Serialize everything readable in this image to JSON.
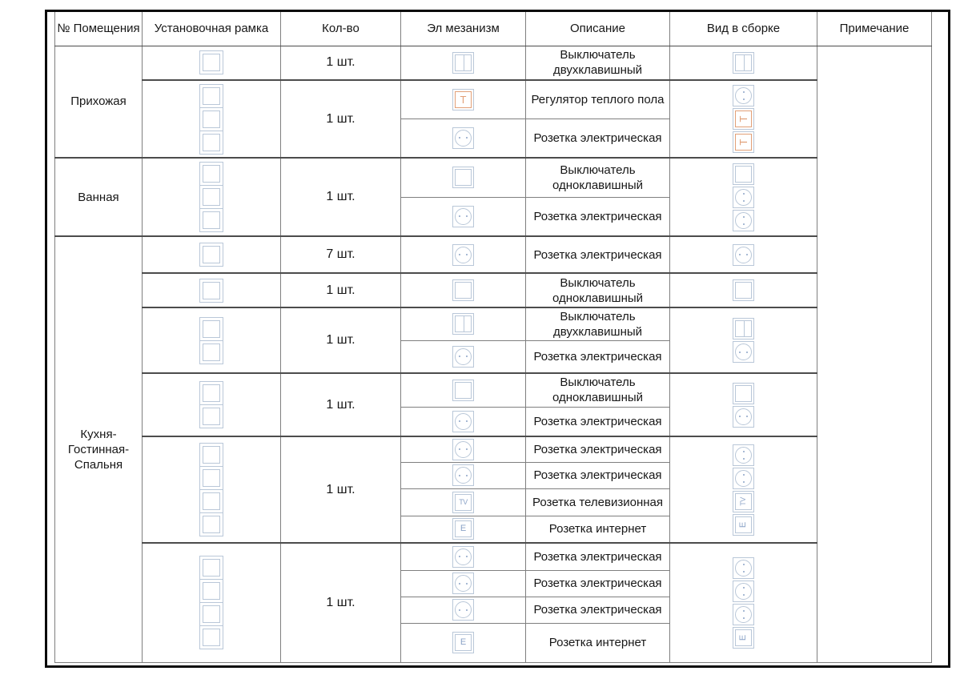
{
  "colors": {
    "frame": "#b9c7d8",
    "accent": "#e2a078",
    "label": "#8ba3c7",
    "grid": "#7f7f7f",
    "grid_dark": "#4c4c4c",
    "page_border": "#0a0a0a"
  },
  "columns": [
    "№ Помещения",
    "Установочная рамка",
    "Кол-во",
    "Эл мезанизм",
    "Описание",
    "Вид в сборке",
    "Примечание"
  ],
  "notes": "",
  "icon_text": {
    "t": "T",
    "tv": "TV",
    "e": "E"
  },
  "rooms": [
    {
      "name": "Прихожая",
      "groups": [
        {
          "frame_count": 1,
          "qty": "1 шт.",
          "mechs": [
            {
              "icon": "switch2",
              "desc": "Выключатель\nдвухклавишный"
            }
          ],
          "assembled": [
            "switch2"
          ]
        },
        {
          "frame_count": 3,
          "qty": "1 шт.",
          "mechs": [
            {
              "icon": "t",
              "desc": "Регулятор теплого пола"
            },
            {
              "icon": "socket",
              "desc": "Розетка электрическая"
            }
          ],
          "assembled": [
            "socket",
            "t",
            "t"
          ]
        }
      ]
    },
    {
      "name": "Ванная",
      "groups": [
        {
          "frame_count": 3,
          "qty": "1 шт.",
          "mechs": [
            {
              "icon": "switch1",
              "desc": "Выключатель\nодноклавишный"
            },
            {
              "icon": "socket",
              "desc": "Розетка электрическая"
            }
          ],
          "assembled": [
            "switch1",
            "socket",
            "socket"
          ]
        }
      ]
    },
    {
      "name": "Кухня-\nГостинная-\nСпальня",
      "groups": [
        {
          "frame_count": 1,
          "qty": "7 шт.",
          "mechs": [
            {
              "icon": "socket",
              "desc": "Розетка электрическая"
            }
          ],
          "assembled": [
            "socket"
          ]
        },
        {
          "frame_count": 1,
          "qty": "1 шт.",
          "mechs": [
            {
              "icon": "switch1",
              "desc": "Выключатель\nодноклавишный"
            }
          ],
          "assembled": [
            "switch1"
          ]
        },
        {
          "frame_count": 2,
          "qty": "1 шт.",
          "mechs": [
            {
              "icon": "switch2",
              "desc": "Выключатель\nдвухклавишный"
            },
            {
              "icon": "socket",
              "desc": "Розетка электрическая"
            }
          ],
          "assembled": [
            "switch2",
            "socket"
          ]
        },
        {
          "frame_count": 2,
          "qty": "1 шт.",
          "mechs": [
            {
              "icon": "switch1",
              "desc": "Выключатель\nодноклавишный"
            },
            {
              "icon": "socket",
              "desc": "Розетка электрическая"
            }
          ],
          "assembled": [
            "switch1",
            "socket"
          ]
        },
        {
          "frame_count": 4,
          "qty": "1 шт.",
          "mechs": [
            {
              "icon": "socket",
              "desc": "Розетка электрическая"
            },
            {
              "icon": "socket",
              "desc": "Розетка электрическая"
            },
            {
              "icon": "tv",
              "desc": "Розетка телевизионная"
            },
            {
              "icon": "e",
              "desc": "Розетка интернет"
            }
          ],
          "assembled": [
            "socket",
            "socket",
            "tv",
            "e"
          ]
        },
        {
          "frame_count": 4,
          "qty": "1 шт.",
          "mechs": [
            {
              "icon": "socket",
              "desc": "Розетка электрическая"
            },
            {
              "icon": "socket",
              "desc": "Розетка электрическая"
            },
            {
              "icon": "socket",
              "desc": "Розетка электрическая"
            },
            {
              "icon": "e",
              "desc": "Розетка интернет"
            }
          ],
          "assembled": [
            "socket",
            "socket",
            "socket",
            "e"
          ]
        }
      ]
    }
  ]
}
